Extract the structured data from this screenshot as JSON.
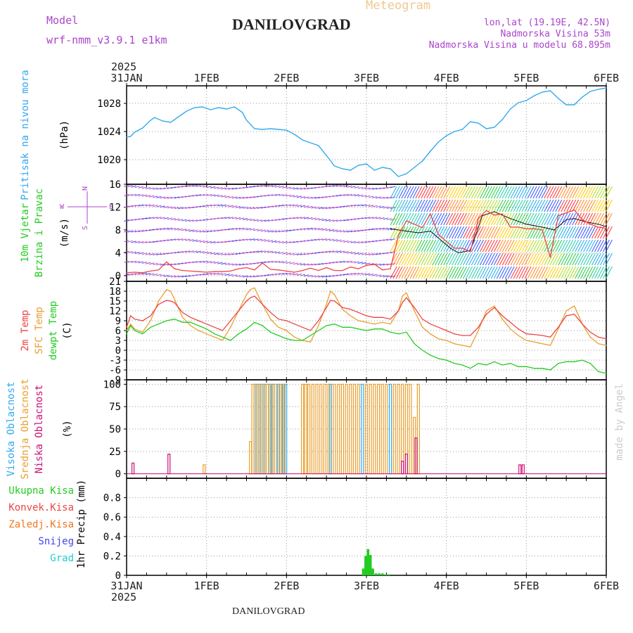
{
  "header": {
    "model_label": "Model",
    "model_name": "wrf-nmm_v3.9.1  e1km",
    "meteogram_label": "Meteogram",
    "station": "DANILOVGRAD",
    "lonlat": "lon,lat (19.19E, 42.5N)",
    "elevation": "Nadmorska Visina 53m",
    "model_elevation": "Nadmorska Visina u modelu 68.895m",
    "footer_station": "DANILOVGRAD",
    "credit": "made by Angel"
  },
  "colors": {
    "pressure": "#33aaee",
    "temp2m": "#ee4444",
    "sfctemp": "#e8a030",
    "dewpt": "#22cc22",
    "high_cloud": "#33aaee",
    "mid_cloud": "#e8a030",
    "low_cloud": "#cc1177",
    "purple": "#aa44cc",
    "total_precip": "#22cc22",
    "conv_precip": "#ee4444",
    "frz_precip": "#ee7722",
    "snow": "#4444ee",
    "graupel": "#22cccc"
  },
  "x_axis": {
    "year_top": "2025",
    "year_bottom": "2025",
    "days": [
      "31JAN",
      "1FEB",
      "2FEB",
      "3FEB",
      "4FEB",
      "5FEB",
      "6FEB"
    ]
  },
  "chart_data": [
    {
      "type": "line",
      "id": "pressure",
      "ylabel_outer": "Pritisak na nivou mora",
      "ylabel_unit": "(hPa)",
      "ylim": [
        1016.5,
        1030.5
      ],
      "yticks": [
        "1020",
        "1024",
        "1028"
      ],
      "grid": true,
      "series": [
        {
          "x": [
            0,
            0.05,
            0.1,
            0.2,
            0.3,
            0.35,
            0.45,
            0.55,
            0.65,
            0.75,
            0.85,
            0.95,
            1.05,
            1.15,
            1.25,
            1.35,
            1.45,
            1.5,
            1.6,
            1.7,
            1.8,
            1.9,
            2.0,
            2.1,
            2.2,
            2.3,
            2.4,
            2.5,
            2.6,
            2.7,
            2.8,
            2.9,
            3.0,
            3.1,
            3.2,
            3.3,
            3.4,
            3.5,
            3.6,
            3.7,
            3.8,
            3.9,
            4.0,
            4.1,
            4.2,
            4.3,
            4.4,
            4.5,
            4.6,
            4.7,
            4.8,
            4.9,
            5.0,
            5.1,
            5.2,
            5.3,
            5.4,
            5.5,
            5.6,
            5.7,
            5.8,
            5.9,
            6.0
          ],
          "values": [
            1023.2,
            1023.3,
            1023.9,
            1024.5,
            1025.6,
            1026.0,
            1025.5,
            1025.3,
            1026.1,
            1026.9,
            1027.4,
            1027.5,
            1027.1,
            1027.4,
            1027.2,
            1027.5,
            1026.7,
            1025.6,
            1024.4,
            1024.3,
            1024.4,
            1024.3,
            1024.2,
            1023.6,
            1022.8,
            1022.4,
            1022.0,
            1020.6,
            1019.1,
            1018.7,
            1018.5,
            1019.2,
            1019.4,
            1018.5,
            1018.9,
            1018.7,
            1017.6,
            1018.0,
            1018.9,
            1019.8,
            1021.2,
            1022.5,
            1023.4,
            1024.0,
            1024.3,
            1025.4,
            1025.2,
            1024.4,
            1024.6,
            1025.7,
            1027.2,
            1028.1,
            1028.4,
            1029.1,
            1029.6,
            1029.8,
            1028.7,
            1027.8,
            1027.8,
            1028.9,
            1029.7,
            1030.0,
            1030.2
          ]
        }
      ]
    },
    {
      "type": "line",
      "id": "wind",
      "ylabel_outer": "10m Vjetar",
      "ylabel_outer2": "Brzina i Pravac",
      "ylabel_unit": "(m/s)",
      "ylim": [
        -1,
        16
      ],
      "yticks": [
        "0",
        "4",
        "8",
        "12",
        "16"
      ],
      "grid": true,
      "compass": "N",
      "compass_w": "W",
      "compass_e": "E",
      "compass_s": "S",
      "series": [
        {
          "name": "",
          "x": [
            0,
            0.1,
            0.2,
            0.3,
            0.4,
            0.5,
            0.6,
            0.7,
            0.8,
            0.9,
            1.0,
            1.1,
            1.2,
            1.3,
            1.4,
            1.5,
            1.6,
            1.7,
            1.8,
            1.9,
            2.0,
            2.1,
            2.2,
            2.3,
            2.4,
            2.5,
            2.6,
            2.7,
            2.8,
            2.9,
            3.0,
            3.1,
            3.2,
            3.3,
            3.4,
            3.5,
            3.6,
            3.7,
            3.8,
            3.9,
            4.0,
            4.1,
            4.2,
            4.3,
            4.4,
            4.5,
            4.6,
            4.7,
            4.8,
            4.9,
            5.0,
            5.1,
            5.2,
            5.3,
            5.4,
            5.5,
            5.6,
            5.7,
            5.8,
            5.9,
            6.0
          ],
          "values": [
            0.5,
            0.6,
            0.5,
            0.8,
            1.0,
            2.4,
            1.2,
            0.9,
            0.8,
            0.7,
            0.6,
            0.7,
            0.7,
            0.8,
            1.2,
            1.4,
            1.0,
            2.2,
            1.1,
            1.0,
            0.8,
            0.6,
            0.9,
            1.3,
            0.9,
            1.4,
            0.9,
            0.9,
            1.5,
            1.2,
            1.8,
            2.0,
            1.0,
            1.2,
            7.0,
            9.6,
            9.0,
            8.4,
            10.8,
            7.2,
            6.0,
            4.8,
            4.8,
            4.2,
            10.0,
            11.4,
            10.6,
            10.8,
            8.5,
            8.5,
            8.2,
            8.2,
            8.0,
            3.2,
            10.5,
            11.0,
            11.5,
            9.8,
            9.0,
            8.5,
            8.3
          ]
        },
        {
          "name": "",
          "x": [
            3.3,
            3.5,
            3.65,
            3.8,
            3.95,
            4.05,
            4.15,
            4.3,
            4.45,
            4.6,
            4.8,
            5.0,
            5.2,
            5.35,
            5.5,
            5.6,
            5.75,
            5.9,
            6.0
          ],
          "values": [
            8.2,
            7.8,
            7.5,
            7.8,
            6.0,
            4.8,
            4.0,
            4.4,
            10.5,
            11.2,
            10.0,
            9.0,
            8.5,
            8.0,
            9.8,
            10.0,
            9.4,
            9.0,
            8.6
          ]
        }
      ]
    },
    {
      "type": "line",
      "id": "temperature",
      "ylabel_outer": "2m Temp",
      "ylabel_outer2": "SFC Temp",
      "ylabel_outer3": "dewpt Temp",
      "ylabel_unit": "(C)",
      "ylim": [
        -9,
        21
      ],
      "yticks": [
        "-9",
        "-6",
        "-3",
        "0",
        "3",
        "6",
        "9",
        "12",
        "15",
        "18",
        "21"
      ],
      "grid": true,
      "series": [
        {
          "name": "2m Temp",
          "x": [
            0,
            0.05,
            0.1,
            0.2,
            0.3,
            0.4,
            0.5,
            0.55,
            0.6,
            0.7,
            0.8,
            0.9,
            1.0,
            1.1,
            1.2,
            1.3,
            1.4,
            1.5,
            1.55,
            1.6,
            1.7,
            1.8,
            1.9,
            2.0,
            2.1,
            2.2,
            2.3,
            2.4,
            2.5,
            2.55,
            2.6,
            2.7,
            2.8,
            2.9,
            3.0,
            3.1,
            3.2,
            3.3,
            3.4,
            3.45,
            3.5,
            3.6,
            3.7,
            3.8,
            3.9,
            4.0,
            4.1,
            4.2,
            4.3,
            4.4,
            4.5,
            4.6,
            4.7,
            4.8,
            4.9,
            5.0,
            5.1,
            5.2,
            5.3,
            5.4,
            5.5,
            5.6,
            5.7,
            5.8,
            5.9,
            6.0
          ],
          "values": [
            7.0,
            10.5,
            9.5,
            9.0,
            10.5,
            14.0,
            15.2,
            15.0,
            14.5,
            11.5,
            10.0,
            9.0,
            8.0,
            7.0,
            6.0,
            9.0,
            12.0,
            15.0,
            16.0,
            16.5,
            14.0,
            11.5,
            9.5,
            9.0,
            8.0,
            7.0,
            6.0,
            9.0,
            13.0,
            15.2,
            15.0,
            13.0,
            12.5,
            11.5,
            10.5,
            10.0,
            10.0,
            9.5,
            12.0,
            14.5,
            16.0,
            13.0,
            9.5,
            8.0,
            7.0,
            6.0,
            5.0,
            4.5,
            4.5,
            7.0,
            11.0,
            13.0,
            10.5,
            8.5,
            6.5,
            5.0,
            4.8,
            4.5,
            4.0,
            7.0,
            10.5,
            11.0,
            8.0,
            5.5,
            4.0,
            3.5
          ]
        },
        {
          "name": "SFC Temp",
          "x": [
            0,
            0.05,
            0.1,
            0.2,
            0.3,
            0.4,
            0.5,
            0.55,
            0.6,
            0.7,
            0.8,
            0.9,
            1.0,
            1.1,
            1.2,
            1.3,
            1.4,
            1.5,
            1.55,
            1.6,
            1.7,
            1.8,
            1.9,
            2.0,
            2.1,
            2.2,
            2.3,
            2.4,
            2.5,
            2.55,
            2.6,
            2.7,
            2.8,
            2.9,
            3.0,
            3.1,
            3.2,
            3.3,
            3.4,
            3.45,
            3.5,
            3.6,
            3.7,
            3.8,
            3.9,
            4.0,
            4.1,
            4.2,
            4.3,
            4.4,
            4.5,
            4.6,
            4.7,
            4.8,
            4.9,
            5.0,
            5.1,
            5.2,
            5.3,
            5.4,
            5.5,
            5.6,
            5.7,
            5.8,
            5.9,
            6.0
          ],
          "values": [
            6.0,
            8.0,
            6.5,
            5.5,
            9.0,
            15.0,
            18.5,
            18.0,
            15.5,
            10.0,
            7.5,
            6.0,
            5.0,
            4.0,
            3.0,
            7.0,
            12.0,
            17.0,
            18.5,
            19.0,
            14.0,
            9.5,
            7.0,
            6.0,
            4.0,
            3.0,
            2.5,
            7.5,
            14.0,
            18.0,
            17.0,
            12.5,
            10.5,
            9.0,
            8.5,
            8.0,
            8.5,
            8.0,
            12.0,
            16.5,
            17.5,
            12.0,
            7.0,
            5.0,
            3.5,
            3.0,
            2.0,
            1.5,
            1.0,
            6.0,
            12.0,
            13.5,
            9.5,
            6.5,
            4.5,
            3.0,
            2.5,
            2.0,
            1.5,
            6.5,
            12.0,
            13.5,
            8.0,
            4.0,
            2.0,
            1.5
          ]
        },
        {
          "name": "dewpt Temp",
          "x": [
            0,
            0.05,
            0.1,
            0.2,
            0.3,
            0.4,
            0.5,
            0.6,
            0.7,
            0.8,
            0.9,
            1.0,
            1.1,
            1.2,
            1.3,
            1.4,
            1.5,
            1.6,
            1.7,
            1.8,
            1.9,
            2.0,
            2.1,
            2.2,
            2.3,
            2.4,
            2.5,
            2.6,
            2.7,
            2.8,
            2.9,
            3.0,
            3.1,
            3.2,
            3.3,
            3.4,
            3.5,
            3.6,
            3.7,
            3.8,
            3.9,
            4.0,
            4.1,
            4.2,
            4.3,
            4.4,
            4.5,
            4.6,
            4.7,
            4.8,
            4.9,
            5.0,
            5.1,
            5.2,
            5.3,
            5.4,
            5.5,
            5.6,
            5.7,
            5.8,
            5.9,
            6.0
          ],
          "values": [
            5.0,
            7.5,
            6.0,
            5.0,
            7.0,
            8.0,
            9.0,
            9.5,
            8.5,
            8.5,
            7.5,
            6.5,
            5.0,
            4.0,
            3.0,
            5.0,
            6.5,
            8.5,
            7.5,
            5.5,
            4.5,
            3.5,
            3.0,
            3.0,
            4.5,
            6.0,
            7.5,
            8.0,
            7.0,
            7.0,
            6.5,
            6.0,
            6.5,
            6.5,
            5.5,
            5.0,
            5.5,
            2.0,
            0.0,
            -1.5,
            -2.5,
            -3.0,
            -4.0,
            -4.5,
            -5.5,
            -4.0,
            -4.5,
            -3.5,
            -4.5,
            -4.0,
            -5.0,
            -5.0,
            -5.5,
            -5.5,
            -6.0,
            -4.0,
            -3.5,
            -3.5,
            -3.0,
            -4.0,
            -6.5,
            -7.0
          ]
        }
      ]
    },
    {
      "type": "bar",
      "id": "cloud",
      "ylabel_outer": "Visoka Oblacnost",
      "ylabel_outer2": "Srednja Oblacnost",
      "ylabel_outer3": "Niska Oblacnost",
      "ylabel_unit": "(%)",
      "ylim": [
        -5,
        105
      ],
      "yticks": [
        "0",
        "25",
        "50",
        "75",
        "100"
      ],
      "grid": true,
      "series": [
        {
          "name": "Visoka Oblacnost",
          "x": [
            1.63,
            1.68,
            1.73,
            1.79,
            1.83,
            1.9,
            1.96,
            1.99,
            2.55,
            2.95,
            3.3
          ],
          "values": [
            100,
            100,
            100,
            100,
            100,
            100,
            100,
            100,
            100,
            100,
            100
          ]
        },
        {
          "name": "Srednja Oblacnost",
          "x": [
            0.97,
            1.55,
            1.58,
            1.61,
            1.66,
            1.71,
            1.76,
            1.81,
            1.86,
            1.92,
            1.97,
            2.2,
            2.24,
            2.28,
            2.33,
            2.38,
            2.43,
            2.48,
            2.53,
            2.6,
            2.65,
            2.7,
            2.75,
            2.8,
            2.85,
            2.9,
            3.0,
            3.05,
            3.1,
            3.15,
            3.2,
            3.25,
            3.35,
            3.4,
            3.45,
            3.5,
            3.55,
            3.6,
            3.65
          ],
          "values": [
            10,
            36,
            100,
            100,
            100,
            100,
            100,
            100,
            100,
            100,
            100,
            100,
            100,
            100,
            100,
            100,
            100,
            100,
            100,
            100,
            100,
            100,
            100,
            100,
            100,
            100,
            100,
            100,
            100,
            100,
            100,
            100,
            100,
            100,
            100,
            100,
            100,
            63,
            100
          ]
        },
        {
          "name": "Niska Oblacnost",
          "x": [
            0.08,
            0.53,
            4.92,
            4.96,
            3.45,
            3.5,
            3.62
          ],
          "values": [
            12,
            22,
            10,
            10,
            14,
            22,
            40
          ]
        }
      ]
    },
    {
      "type": "bar",
      "id": "precip",
      "ylabel_unit": "1hr Precip (mm)",
      "ylim": [
        0,
        1.0
      ],
      "yticks": [
        "0",
        "0.2",
        "0.4",
        "0.6",
        "0.8"
      ],
      "grid": true,
      "series": [
        {
          "name": "Ukupna Kisa",
          "x": [
            2.96,
            2.99,
            3.02,
            3.05,
            3.08,
            3.12,
            3.16,
            3.2,
            3.24,
            3.28
          ],
          "values": [
            0.07,
            0.2,
            0.27,
            0.21,
            0.07,
            0.02,
            0.02,
            0.02,
            0.01,
            0.01
          ]
        },
        {
          "name": "Konvek.Kisa",
          "x": [],
          "values": []
        },
        {
          "name": "Zaledj.Kisa",
          "x": [],
          "values": []
        },
        {
          "name": "Snijeg",
          "x": [],
          "values": []
        },
        {
          "name": "Grad",
          "x": [],
          "values": []
        }
      ]
    }
  ]
}
